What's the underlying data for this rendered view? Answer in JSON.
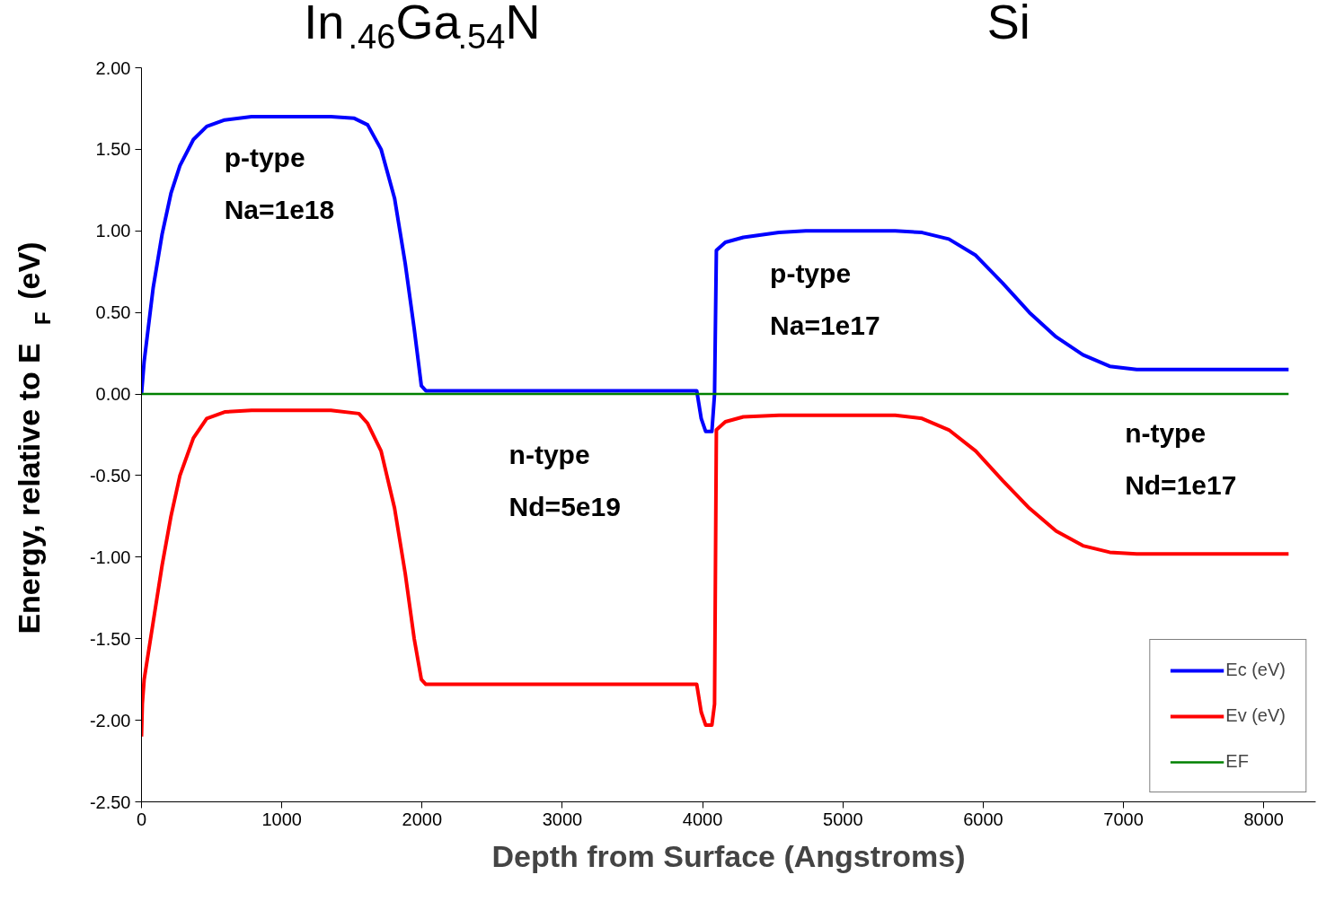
{
  "chart_data": {
    "type": "line",
    "xlabel": "Depth from Surface (Angstroms)",
    "ylabel": "Energy, relative to E$_{F}$ (eV)",
    "xlim": [
      0,
      8370
    ],
    "ylim": [
      -2.5,
      2.0
    ],
    "xticks": [
      0,
      1000,
      2000,
      3000,
      4000,
      5000,
      6000,
      7000,
      8000
    ],
    "yticks": [
      {
        "value": 2.0,
        "label": "2.00"
      },
      {
        "value": 1.5,
        "label": "1.50"
      },
      {
        "value": 1.0,
        "label": "1.00"
      },
      {
        "value": 0.5,
        "label": "0.50"
      },
      {
        "value": 0.0,
        "label": "0.00"
      },
      {
        "value": -0.5,
        "label": "-0.50"
      },
      {
        "value": -1.0,
        "label": "-1.00"
      },
      {
        "value": -1.5,
        "label": "-1.50"
      },
      {
        "value": -2.0,
        "label": "-2.00"
      },
      {
        "value": -2.5,
        "label": "-2.50"
      }
    ],
    "grid": false,
    "legend": "bottom right",
    "marker": "none",
    "line_style": "solid",
    "series": [
      {
        "name": "Ec (eV)",
        "color": "#0000ff",
        "x": [
          0,
          19,
          83,
          147,
          210,
          274,
          370,
          465,
          593,
          784,
          1350,
          1517,
          1612,
          1708,
          1804,
          1880,
          1944,
          1995,
          2027,
          3958,
          3990,
          4022,
          4066,
          4085,
          4098,
          4162,
          4290,
          4544,
          4735,
          5373,
          5564,
          5755,
          5947,
          6138,
          6329,
          6520,
          6711,
          6902,
          7094,
          8177
        ],
        "values": [
          0.0,
          0.2,
          0.65,
          0.98,
          1.23,
          1.4,
          1.56,
          1.64,
          1.68,
          1.7,
          1.7,
          1.69,
          1.65,
          1.5,
          1.2,
          0.8,
          0.4,
          0.05,
          0.02,
          0.02,
          -0.15,
          -0.23,
          -0.23,
          0.0,
          0.88,
          0.93,
          0.96,
          0.99,
          1.0,
          1.0,
          0.99,
          0.95,
          0.85,
          0.68,
          0.5,
          0.35,
          0.24,
          0.17,
          0.15,
          0.15
        ]
      },
      {
        "name": "Ev (eV)",
        "color": "#ff0000",
        "x": [
          0,
          6,
          19,
          83,
          147,
          210,
          274,
          370,
          465,
          593,
          784,
          1350,
          1550,
          1612,
          1708,
          1804,
          1880,
          1944,
          1995,
          2027,
          3958,
          3990,
          4022,
          4066,
          4085,
          4098,
          4162,
          4290,
          4544,
          5373,
          5564,
          5755,
          5947,
          6138,
          6329,
          6520,
          6711,
          6902,
          7094,
          8177
        ],
        "values": [
          -2.1,
          -1.9,
          -1.75,
          -1.4,
          -1.05,
          -0.75,
          -0.5,
          -0.27,
          -0.15,
          -0.11,
          -0.1,
          -0.1,
          -0.12,
          -0.18,
          -0.35,
          -0.7,
          -1.1,
          -1.5,
          -1.75,
          -1.78,
          -1.78,
          -1.95,
          -2.03,
          -2.03,
          -1.9,
          -0.22,
          -0.17,
          -0.14,
          -0.13,
          -0.13,
          -0.15,
          -0.22,
          -0.35,
          -0.53,
          -0.7,
          -0.84,
          -0.93,
          -0.97,
          -0.98,
          -0.98
        ]
      },
      {
        "name": "EF",
        "color": "#008000",
        "x": [
          0,
          8177
        ],
        "values": [
          0.0,
          0.0
        ]
      }
    ],
    "annotations": [
      "In$_{.46}$Ga$_{.54}$N",
      "Si",
      "p-type",
      "Na=1e18",
      "n-type",
      "Nd=5e19",
      "p-type",
      "Na=1e17",
      "n-type",
      "Nd=1e17"
    ]
  }
}
